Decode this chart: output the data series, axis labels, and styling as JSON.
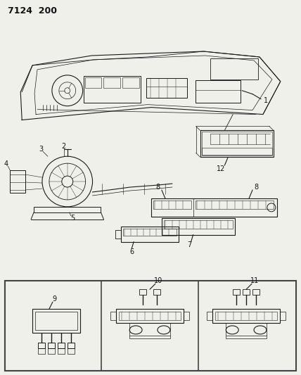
{
  "title": "7124  200",
  "bg_color": "#f0f0eb",
  "line_color": "#1a1a1a",
  "label_color": "#111111",
  "fig_w": 4.28,
  "fig_h": 5.33
}
